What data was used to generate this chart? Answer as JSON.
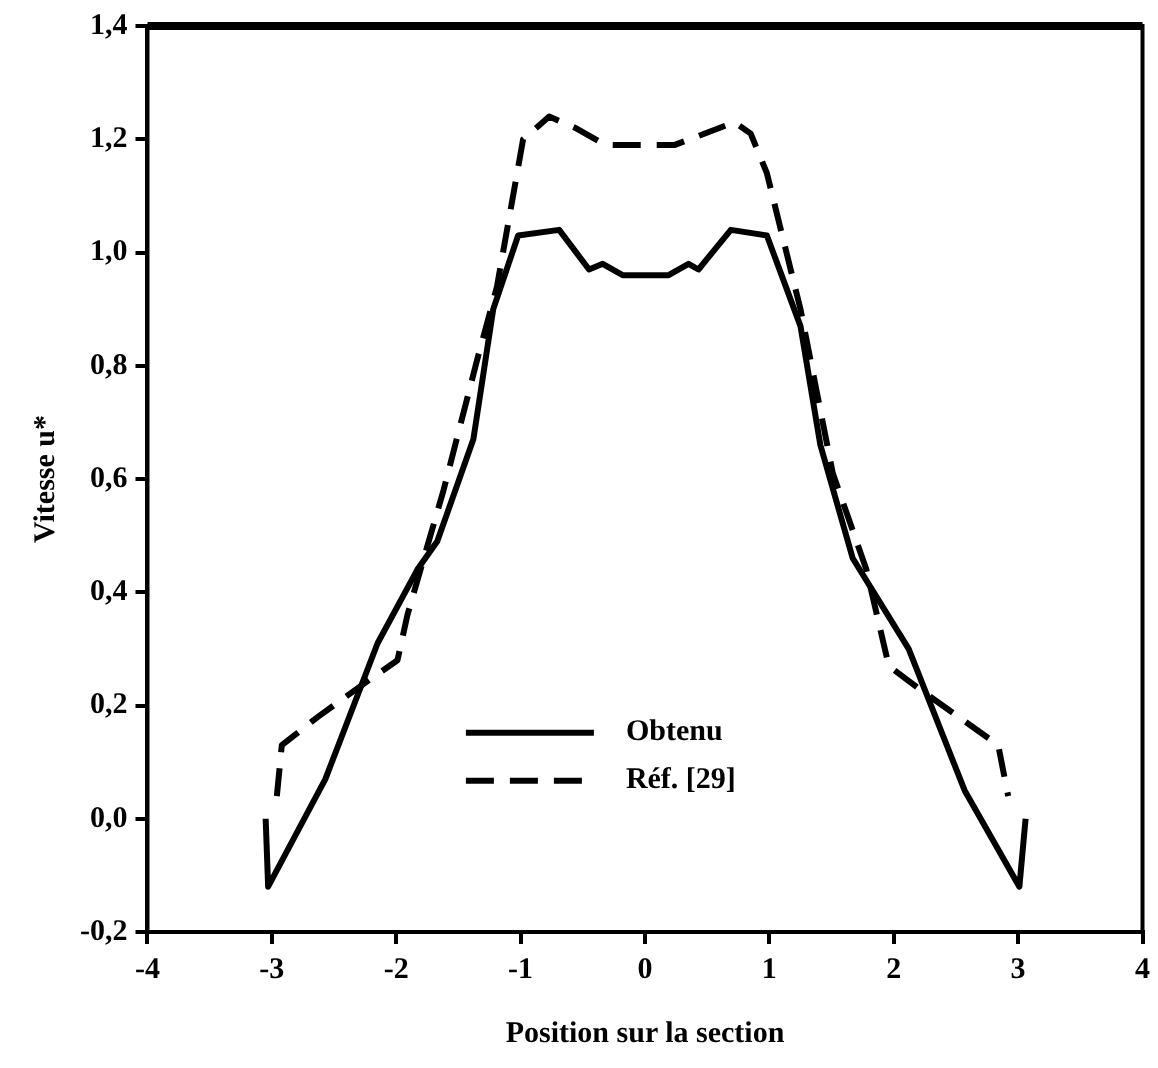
{
  "chart_data": {
    "type": "line",
    "xlabel": "Position sur la section",
    "ylabel": "Vitesse u*",
    "xlim": [
      -4,
      4
    ],
    "xticks": [
      -4,
      -3,
      -2,
      -1,
      0,
      1,
      2,
      3,
      4
    ],
    "ylim": [
      -0.2,
      1.4
    ],
    "yticks": [
      {
        "value": -0.2,
        "label": "-0,2"
      },
      {
        "value": 0,
        "label": "0,0"
      },
      {
        "value": 0.2,
        "label": "0,2"
      },
      {
        "value": 0.4,
        "label": "0,4"
      },
      {
        "value": 0.6,
        "label": "0,6"
      },
      {
        "value": 0.8,
        "label": "0,8"
      },
      {
        "value": 1.0,
        "label": "1,0"
      },
      {
        "value": 1.2,
        "label": "1,2"
      },
      {
        "value": 1.4,
        "label": "1,4"
      }
    ],
    "grid": false,
    "legend": "bottom",
    "marker": "none",
    "series": [
      {
        "name": "Obtenu",
        "color": "#000000",
        "line_style": "solid",
        "x": [
          -3.05,
          -3.03,
          -2.57,
          -2.15,
          -1.83,
          -1.67,
          -1.38,
          -1.22,
          -1.02,
          -0.69,
          -0.45,
          -0.34,
          -0.18,
          0.19,
          0.35,
          0.43,
          0.69,
          0.98,
          1.25,
          1.41,
          1.67,
          2.12,
          2.57,
          3.01,
          3.06
        ],
        "values": [
          0.0,
          -0.12,
          0.07,
          0.31,
          0.44,
          0.49,
          0.67,
          0.9,
          1.03,
          1.04,
          0.97,
          0.98,
          0.96,
          0.96,
          0.98,
          0.97,
          1.04,
          1.03,
          0.87,
          0.66,
          0.46,
          0.3,
          0.05,
          -0.12,
          0.0
        ]
      },
      {
        "name": "Réf. [29]",
        "color": "#000000",
        "line_style": "dashed",
        "x": [
          -2.96,
          -2.92,
          -2.63,
          -2.25,
          -1.99,
          -1.91,
          -1.62,
          -1.35,
          -1.19,
          -0.98,
          -0.77,
          -0.56,
          -0.32,
          -0.18,
          0.24,
          0.72,
          0.85,
          0.98,
          1.25,
          1.51,
          1.78,
          1.96,
          2.2,
          2.84,
          2.92
        ],
        "values": [
          0.04,
          0.13,
          0.18,
          0.24,
          0.28,
          0.36,
          0.58,
          0.81,
          0.94,
          1.2,
          1.24,
          1.22,
          1.19,
          1.19,
          1.19,
          1.23,
          1.21,
          1.14,
          0.9,
          0.61,
          0.44,
          0.27,
          0.23,
          0.13,
          0.04
        ]
      }
    ]
  }
}
